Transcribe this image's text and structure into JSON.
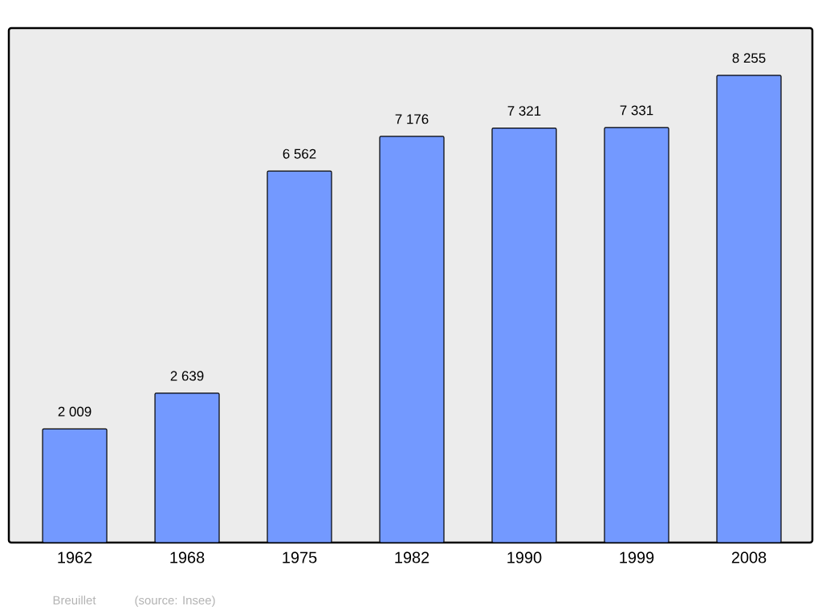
{
  "chart_data": {
    "type": "bar",
    "categories": [
      "1962",
      "1968",
      "1975",
      "1982",
      "1990",
      "1999",
      "2008"
    ],
    "values": [
      2009,
      2639,
      6562,
      7176,
      7321,
      7331,
      8255
    ],
    "value_labels": [
      "2 009",
      "2 639",
      "6 562",
      "7 176",
      "7 321",
      "7 331",
      "8 255"
    ],
    "color": "#7399ff",
    "annotations": [
      "Breuillet",
      "(source: Insee)"
    ]
  }
}
